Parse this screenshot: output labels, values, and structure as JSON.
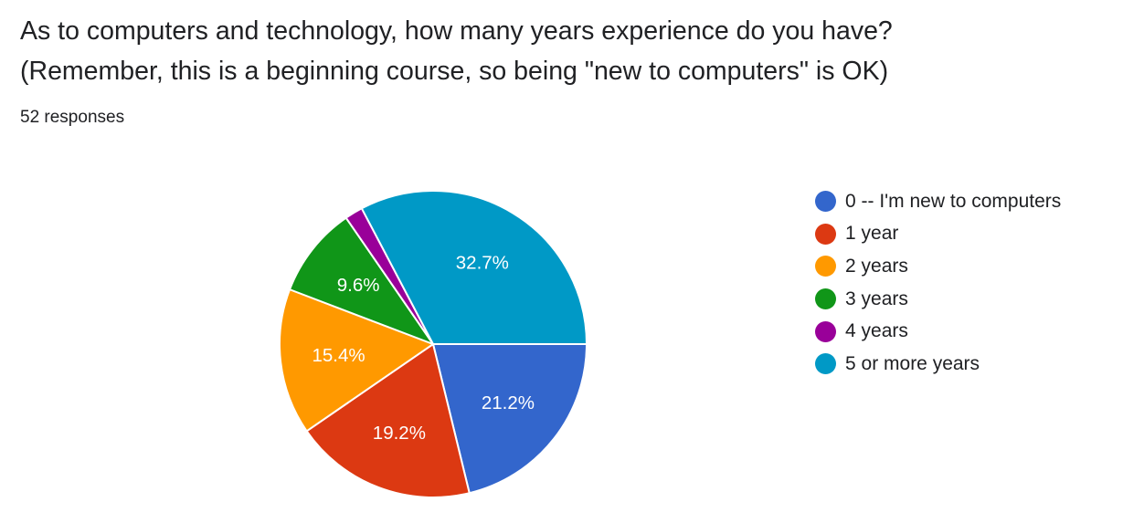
{
  "question": {
    "title_line1": "As to computers and technology, how many years experience do you have?",
    "title_line2": "(Remember, this is a beginning course, so being \"new to computers\" is OK)",
    "responses": "52 responses"
  },
  "chart_data": {
    "type": "pie",
    "legend_position": "right",
    "slices": [
      {
        "label": "0 -- I'm new to computers",
        "value": 21.2,
        "display": "21.2%",
        "color": "#3366cc"
      },
      {
        "label": "1 year",
        "value": 19.2,
        "display": "19.2%",
        "color": "#dc3912"
      },
      {
        "label": "2 years",
        "value": 15.4,
        "display": "15.4%",
        "color": "#ff9900"
      },
      {
        "label": "3 years",
        "value": 9.6,
        "display": "9.6%",
        "color": "#109618"
      },
      {
        "label": "4 years",
        "value": 1.9,
        "display": "",
        "color": "#990099"
      },
      {
        "label": "5 or more years",
        "value": 32.7,
        "display": "32.7%",
        "color": "#0099c6"
      }
    ]
  }
}
